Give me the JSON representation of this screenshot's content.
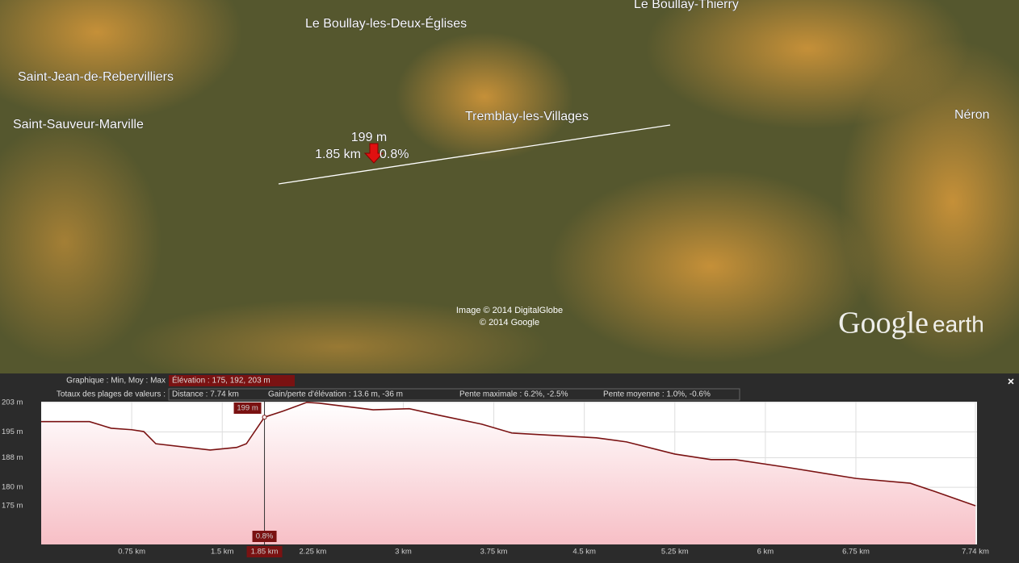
{
  "map": {
    "places": [
      "Le Boullay-les-Deux-Églises",
      "Le Boullay-Thierry",
      "Saint-Jean-de-Rebervilliers",
      "Saint-Sauveur-Marville",
      "Tremblay-les-Villages",
      "Néron"
    ],
    "measure": {
      "elevation": "199 m",
      "distance": "1.85 km",
      "slope": "0.8%"
    },
    "credits": [
      "Image © 2014 DigitalGlobe",
      "© 2014 Google"
    ],
    "logo": {
      "brand": "Google",
      "product": "earth"
    }
  },
  "panel": {
    "graph_label": "Graphique : Min, Moy : Max",
    "elevation_stats": "Élévation : 175, 192, 203 m",
    "totals_label": "Totaux des plages de valeurs :",
    "distance": "Distance : 7.74 km",
    "gain_loss": "Gain/perte d'élévation : 13.6 m, -36 m",
    "max_slope": "Pente maximale : 6.2%, -2.5%",
    "avg_slope": "Pente moyenne : 1.0%, -0.6%",
    "close": "×"
  },
  "chart_data": {
    "type": "area",
    "color": "#7a1212",
    "fill": "#f7bfc6",
    "x": [
      0,
      0.4,
      0.58,
      0.75,
      0.85,
      0.95,
      1.4,
      1.62,
      1.7,
      1.85,
      2.0,
      2.2,
      2.3,
      2.75,
      3.05,
      3.3,
      3.65,
      3.9,
      4.6,
      4.85,
      5.25,
      5.55,
      5.75,
      6.2,
      6.75,
      7.2,
      7.4,
      7.74
    ],
    "values": [
      197.8,
      197.8,
      196,
      195.6,
      195.1,
      191.8,
      190.1,
      190.8,
      191.8,
      199,
      200.6,
      203,
      202.8,
      201,
      201.3,
      199.5,
      197.1,
      194.7,
      193.4,
      192.3,
      189,
      187.5,
      187.5,
      185.3,
      182.4,
      181.1,
      178.9,
      175
    ],
    "xlim": [
      0,
      7.74
    ],
    "ylim": [
      164.5,
      203.2
    ],
    "xticks": [
      {
        "value": 0.75,
        "label": "0.75 km"
      },
      {
        "value": 1.5,
        "label": "1.5 km"
      },
      {
        "value": 2.25,
        "label": "2.25 km"
      },
      {
        "value": 3,
        "label": "3 km"
      },
      {
        "value": 3.75,
        "label": "3.75 km"
      },
      {
        "value": 4.5,
        "label": "4.5 km"
      },
      {
        "value": 5.25,
        "label": "5.25 km"
      },
      {
        "value": 6,
        "label": "6 km"
      },
      {
        "value": 6.75,
        "label": "6.75 km"
      },
      {
        "value": 7.74,
        "label": "7.74 km"
      }
    ],
    "yticks": [
      {
        "value": 203,
        "label": "203 m"
      },
      {
        "value": 195,
        "label": "195 m"
      },
      {
        "value": 188,
        "label": "188 m"
      },
      {
        "value": 180,
        "label": "180 m"
      },
      {
        "value": 175,
        "label": "175 m"
      }
    ],
    "grid": true,
    "cursor": {
      "x": 1.85,
      "x_label": "1.85 km",
      "elevation": 199,
      "elevation_label": "199 m",
      "slope_label": "0.8%"
    }
  }
}
